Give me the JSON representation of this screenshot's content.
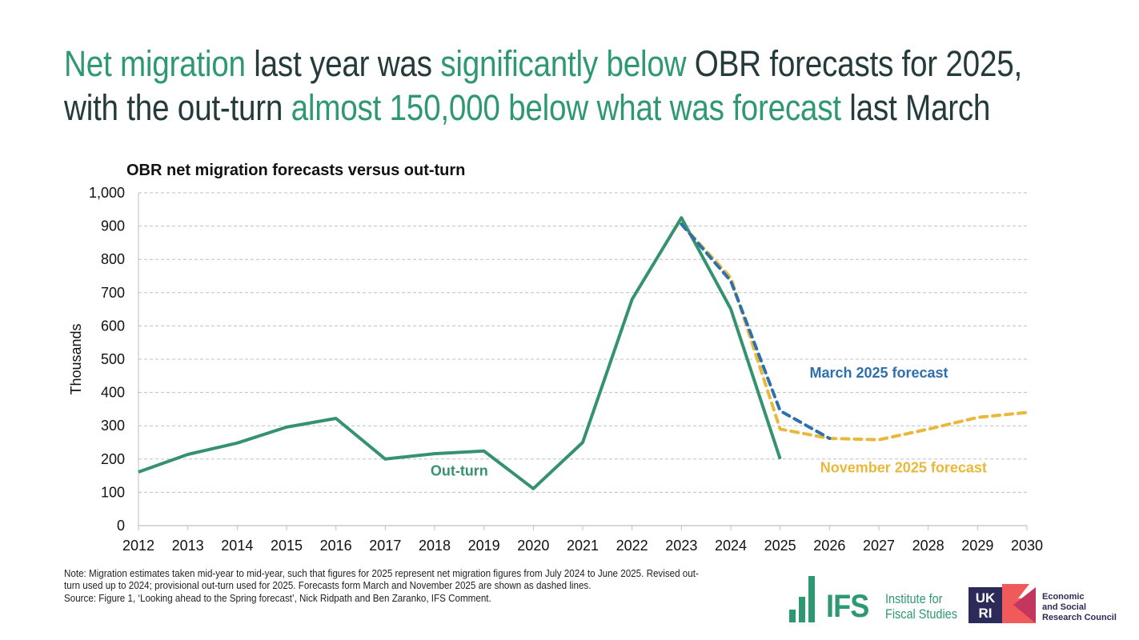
{
  "headline": {
    "line1": [
      {
        "text": "Net migration",
        "highlight": true
      },
      {
        "text": " last year was ",
        "highlight": false
      },
      {
        "text": "significantly below",
        "highlight": true
      },
      {
        "text": " OBR forecasts for 2025,",
        "highlight": false
      }
    ],
    "line2": [
      {
        "text": "with the out-turn ",
        "highlight": false
      },
      {
        "text": "almost 150,000 below what was forecast",
        "highlight": true
      },
      {
        "text": " last March",
        "highlight": false
      }
    ]
  },
  "colors": {
    "highlight": "#2e9873",
    "dark_text": "#253a3a",
    "outturn": "#35926f",
    "march": "#2e6fad",
    "november": "#e9b83a",
    "grid": "#bfbfbf"
  },
  "chart_data": {
    "type": "line",
    "title": "OBR net migration forecasts versus out-turn",
    "xlabel": "",
    "ylabel": "Thousands",
    "ylim": [
      0,
      1000
    ],
    "yticks": [
      0,
      100,
      200,
      300,
      400,
      500,
      600,
      700,
      800,
      900,
      1000
    ],
    "ytick_labels": [
      "0",
      "100",
      "200",
      "300",
      "400",
      "500",
      "600",
      "700",
      "800",
      "900",
      "1,000"
    ],
    "x": [
      2012,
      2013,
      2014,
      2015,
      2016,
      2017,
      2018,
      2019,
      2020,
      2021,
      2022,
      2023,
      2024,
      2025,
      2026,
      2027,
      2028,
      2029,
      2030
    ],
    "grid": true,
    "series": [
      {
        "name": "Out-turn",
        "style": "solid",
        "color": "#35926f",
        "x": [
          2012,
          2013,
          2014,
          2015,
          2016,
          2017,
          2018,
          2019,
          2020,
          2021,
          2022,
          2023,
          2024,
          2025
        ],
        "values": [
          161,
          214,
          248,
          296,
          322,
          200,
          216,
          224,
          111,
          250,
          680,
          925,
          651,
          200
        ]
      },
      {
        "name": "March 2025 forecast",
        "style": "dashed",
        "color": "#2e6fad",
        "x": [
          2023,
          2024,
          2025,
          2026
        ],
        "values": [
          906,
          735,
          345,
          262
        ]
      },
      {
        "name": "November 2025 forecast",
        "style": "dashed",
        "color": "#e9b83a",
        "x": [
          2023,
          2024,
          2025,
          2026,
          2027,
          2028,
          2029,
          2030
        ],
        "values": [
          906,
          745,
          290,
          262,
          258,
          290,
          325,
          340
        ]
      }
    ],
    "annotations": [
      {
        "text": "Out-turn",
        "series": "Out-turn",
        "x": 2018.5,
        "y": 150
      },
      {
        "text": "March 2025 forecast",
        "series": "March 2025 forecast",
        "x": 2027.0,
        "y": 445
      },
      {
        "text": "November 2025 forecast",
        "series": "November 2025 forecast",
        "x": 2027.5,
        "y": 160
      }
    ]
  },
  "footer": {
    "note": "Note: Migration estimates taken mid-year to mid-year, such that figures for 2025 represent net migration figures from July 2024 to June 2025. Revised out-turn used up to 2024; provisional out-turn used for 2025. Forecasts form March and November 2025 are shown as dashed lines.",
    "source": "Source: Figure 1, ‘Looking ahead to the Spring forecast’, Nick Ridpath and Ben Zaranko, IFS Comment."
  },
  "logos": {
    "ifs": {
      "abbr": "IFS",
      "name_line1": "Institute for",
      "name_line2": "Fiscal Studies"
    },
    "ukri": {
      "abbr_line1": "UK",
      "abbr_line2": "RI",
      "name_line1": "Economic",
      "name_line2": "and Social",
      "name_line3": "Research Council"
    }
  }
}
